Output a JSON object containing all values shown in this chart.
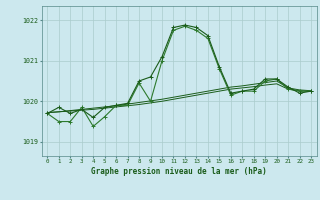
{
  "bg_color": "#cce8ee",
  "grid_color": "#aacccc",
  "line_color_dark": "#1a5c1a",
  "line_color_medium": "#2d7a2d",
  "xlabel": "Graphe pression niveau de la mer (hPa)",
  "ylabel_ticks": [
    1019,
    1020,
    1021,
    1022
  ],
  "xlim": [
    -0.5,
    23.5
  ],
  "ylim": [
    1018.65,
    1022.35
  ],
  "main_y": [
    1019.7,
    1019.85,
    1019.7,
    1019.8,
    1019.6,
    1019.85,
    1019.9,
    1019.95,
    1020.5,
    1020.6,
    1021.1,
    1021.82,
    1021.88,
    1021.82,
    1021.62,
    1020.85,
    1020.2,
    1020.25,
    1020.3,
    1020.55,
    1020.55,
    1020.35,
    1020.2,
    1020.25
  ],
  "line2_y": [
    1019.7,
    1019.5,
    1019.5,
    1019.85,
    1019.38,
    1019.62,
    1019.9,
    1019.9,
    1020.45,
    1020.0,
    1021.0,
    1021.75,
    1021.85,
    1021.75,
    1021.55,
    1020.8,
    1020.15,
    1020.25,
    1020.25,
    1020.5,
    1020.55,
    1020.3,
    1020.25,
    1020.25
  ],
  "flat1_y": [
    1019.72,
    1019.74,
    1019.76,
    1019.78,
    1019.8,
    1019.83,
    1019.86,
    1019.89,
    1019.92,
    1019.96,
    1020.0,
    1020.05,
    1020.1,
    1020.15,
    1020.2,
    1020.25,
    1020.3,
    1020.33,
    1020.36,
    1020.4,
    1020.43,
    1020.3,
    1020.26,
    1020.24
  ],
  "flat2_y": [
    1019.72,
    1019.74,
    1019.77,
    1019.8,
    1019.83,
    1019.86,
    1019.89,
    1019.93,
    1019.97,
    1020.01,
    1020.05,
    1020.1,
    1020.15,
    1020.2,
    1020.25,
    1020.3,
    1020.35,
    1020.38,
    1020.42,
    1020.46,
    1020.5,
    1020.33,
    1020.28,
    1020.26
  ]
}
